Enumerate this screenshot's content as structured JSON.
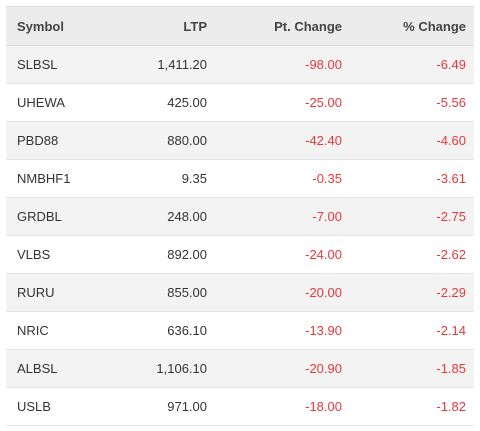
{
  "table": {
    "headers": {
      "symbol": "Symbol",
      "ltp": "LTP",
      "pt_change": "Pt. Change",
      "pct_change": "% Change"
    },
    "rows": [
      {
        "symbol": "SLBSL",
        "ltp": "1,411.20",
        "pt_change": "-98.00",
        "pct_change": "-6.49"
      },
      {
        "symbol": "UHEWA",
        "ltp": "425.00",
        "pt_change": "-25.00",
        "pct_change": "-5.56"
      },
      {
        "symbol": "PBD88",
        "ltp": "880.00",
        "pt_change": "-42.40",
        "pct_change": "-4.60"
      },
      {
        "symbol": "NMBHF1",
        "ltp": "9.35",
        "pt_change": "-0.35",
        "pct_change": "-3.61"
      },
      {
        "symbol": "GRDBL",
        "ltp": "248.00",
        "pt_change": "-7.00",
        "pct_change": "-2.75"
      },
      {
        "symbol": "VLBS",
        "ltp": "892.00",
        "pt_change": "-24.00",
        "pct_change": "-2.62"
      },
      {
        "symbol": "RURU",
        "ltp": "855.00",
        "pt_change": "-20.00",
        "pct_change": "-2.29"
      },
      {
        "symbol": "NRIC",
        "ltp": "636.10",
        "pt_change": "-13.90",
        "pct_change": "-2.14"
      },
      {
        "symbol": "ALBSL",
        "ltp": "1,106.10",
        "pt_change": "-20.90",
        "pct_change": "-1.85"
      },
      {
        "symbol": "USLB",
        "ltp": "971.00",
        "pt_change": "-18.00",
        "pct_change": "-1.82"
      }
    ]
  },
  "colors": {
    "negative": "#e8383b",
    "header_bg": "#ececec",
    "odd_row_bg": "#f3f3f3",
    "even_row_bg": "#ffffff",
    "text": "#333333"
  }
}
